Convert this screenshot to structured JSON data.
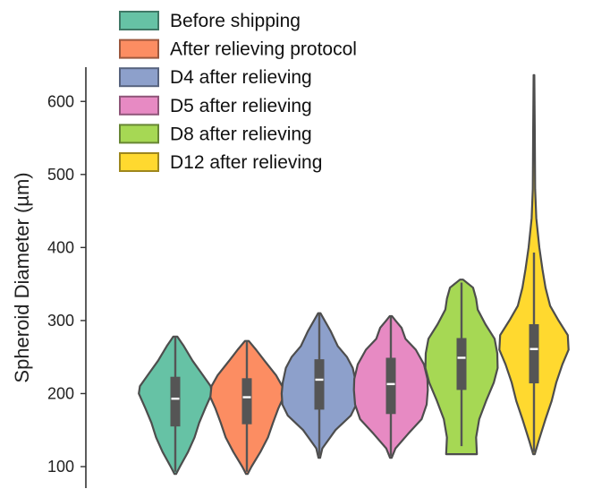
{
  "chart_data": {
    "type": "violin",
    "title": "",
    "xlabel": "",
    "ylabel": "Spheroid Diameter (µm)",
    "ylim": [
      88,
      642
    ],
    "yticks": [
      100,
      200,
      300,
      400,
      500,
      600
    ],
    "grid": false,
    "legend_position": "top-left",
    "series": [
      {
        "name": "Before shipping",
        "color": "#66c2a5",
        "median": 193,
        "q1": 155,
        "q3": 223,
        "whisker_low": 93,
        "whisker_high": 278,
        "density": [
          [
            90,
            0.02
          ],
          [
            100,
            0.12
          ],
          [
            120,
            0.33
          ],
          [
            140,
            0.5
          ],
          [
            160,
            0.62
          ],
          [
            180,
            0.78
          ],
          [
            200,
            0.95
          ],
          [
            210,
            0.92
          ],
          [
            225,
            0.72
          ],
          [
            245,
            0.45
          ],
          [
            265,
            0.22
          ],
          [
            278,
            0.05
          ]
        ]
      },
      {
        "name": "After relieving protocol",
        "color": "#fc8d62",
        "median": 195,
        "q1": 158,
        "q3": 221,
        "whisker_low": 93,
        "whisker_high": 272,
        "density": [
          [
            90,
            0.02
          ],
          [
            100,
            0.12
          ],
          [
            120,
            0.35
          ],
          [
            140,
            0.55
          ],
          [
            160,
            0.68
          ],
          [
            180,
            0.82
          ],
          [
            195,
            0.95
          ],
          [
            210,
            0.92
          ],
          [
            225,
            0.76
          ],
          [
            245,
            0.46
          ],
          [
            260,
            0.24
          ],
          [
            272,
            0.05
          ]
        ]
      },
      {
        "name": "D4 after relieving",
        "color": "#8da0cb",
        "median": 219,
        "q1": 178,
        "q3": 247,
        "whisker_low": 114,
        "whisker_high": 309,
        "density": [
          [
            112,
            0.02
          ],
          [
            125,
            0.08
          ],
          [
            150,
            0.42
          ],
          [
            170,
            0.82
          ],
          [
            185,
            0.96
          ],
          [
            200,
            0.98
          ],
          [
            215,
            0.95
          ],
          [
            235,
            0.87
          ],
          [
            250,
            0.72
          ],
          [
            265,
            0.48
          ],
          [
            285,
            0.3
          ],
          [
            300,
            0.14
          ],
          [
            310,
            0.03
          ]
        ]
      },
      {
        "name": "D5 after relieving",
        "color": "#e78ac3",
        "median": 213,
        "q1": 172,
        "q3": 249,
        "whisker_low": 114,
        "whisker_high": 305,
        "density": [
          [
            112,
            0.02
          ],
          [
            125,
            0.12
          ],
          [
            145,
            0.45
          ],
          [
            165,
            0.8
          ],
          [
            185,
            0.93
          ],
          [
            205,
            0.96
          ],
          [
            220,
            0.95
          ],
          [
            240,
            0.86
          ],
          [
            260,
            0.65
          ],
          [
            275,
            0.38
          ],
          [
            290,
            0.28
          ],
          [
            300,
            0.12
          ],
          [
            306,
            0.03
          ]
        ]
      },
      {
        "name": "D8 after relieving",
        "color": "#a6d854",
        "median": 249,
        "q1": 205,
        "q3": 276,
        "whisker_low": 128,
        "whisker_high": 352,
        "density": [
          [
            117,
            0.4
          ],
          [
            140,
            0.38
          ],
          [
            165,
            0.46
          ],
          [
            190,
            0.64
          ],
          [
            215,
            0.84
          ],
          [
            235,
            0.94
          ],
          [
            255,
            0.93
          ],
          [
            275,
            0.86
          ],
          [
            295,
            0.62
          ],
          [
            315,
            0.42
          ],
          [
            330,
            0.38
          ],
          [
            345,
            0.3
          ],
          [
            356,
            0.04
          ]
        ]
      },
      {
        "name": "D12 after relieving",
        "color": "#ffd92f",
        "median": 261,
        "q1": 214,
        "q3": 295,
        "whisker_low": 120,
        "whisker_high": 393,
        "density": [
          [
            117,
            0.02
          ],
          [
            135,
            0.12
          ],
          [
            165,
            0.3
          ],
          [
            190,
            0.46
          ],
          [
            215,
            0.58
          ],
          [
            240,
            0.74
          ],
          [
            260,
            0.9
          ],
          [
            280,
            0.88
          ],
          [
            300,
            0.64
          ],
          [
            320,
            0.42
          ],
          [
            345,
            0.3
          ],
          [
            370,
            0.22
          ],
          [
            400,
            0.14
          ],
          [
            440,
            0.06
          ],
          [
            480,
            0.03
          ],
          [
            560,
            0.02
          ],
          [
            636,
            0.01
          ]
        ]
      }
    ]
  }
}
